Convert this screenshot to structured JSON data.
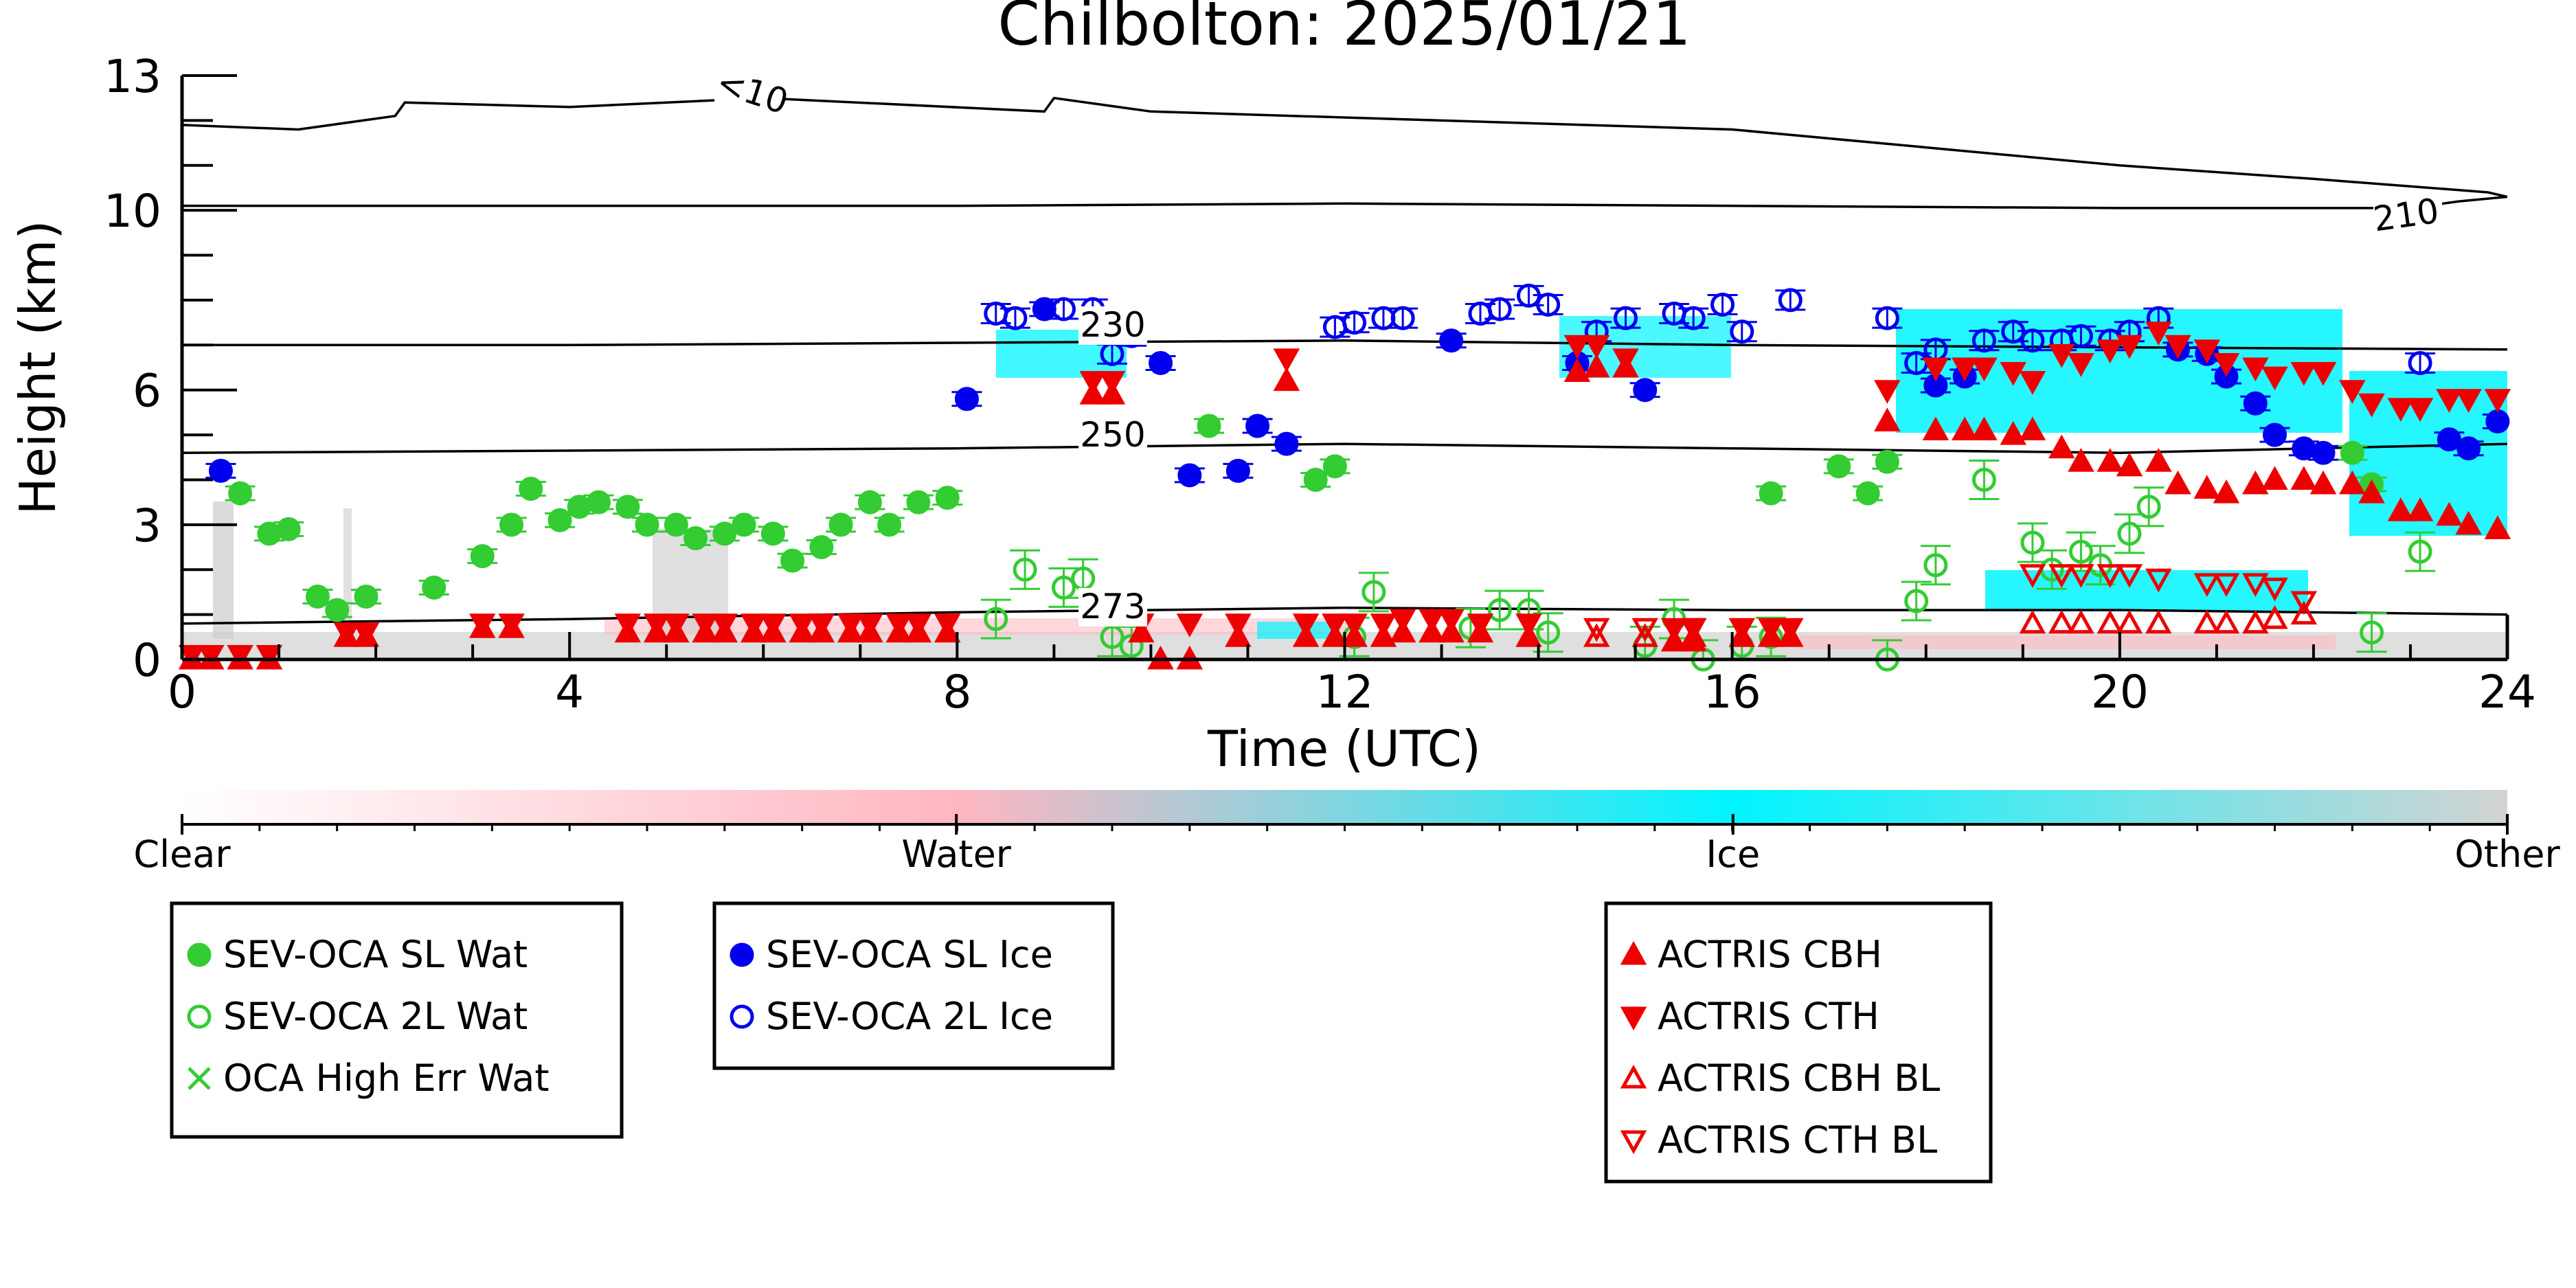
{
  "chart_data": {
    "type": "scatter",
    "title": "Chilbolton: 2025/01/21",
    "xlabel": "Time (UTC)",
    "ylabel": "Height (km)",
    "xlim": [
      0,
      24
    ],
    "ylim": [
      0,
      13
    ],
    "xticks": [
      0,
      4,
      8,
      12,
      16,
      20,
      24
    ],
    "yticks": [
      0,
      3,
      6,
      10,
      13
    ],
    "grid": false,
    "colorbar": {
      "labels": [
        {
          "value": 0,
          "text": "Clear"
        },
        {
          "value": 0.333,
          "text": "Water"
        },
        {
          "value": 0.667,
          "text": "Ice"
        },
        {
          "value": 1,
          "text": "Other"
        }
      ],
      "colors": [
        "#ffffff",
        "#ffb6c1",
        "#00f5ff",
        "#d3d3d3"
      ]
    },
    "contours": [
      {
        "label": "<10",
        "level_km": 12.3,
        "label_at": [
          14.5,
          12.6
        ],
        "points": [
          [
            0,
            11.9
          ],
          [
            1.2,
            11.8
          ],
          [
            2.2,
            12.1
          ],
          [
            2.3,
            12.4
          ],
          [
            4,
            12.3
          ],
          [
            6,
            12.5
          ],
          [
            8.9,
            12.2
          ],
          [
            9,
            12.5
          ],
          [
            10,
            12.2
          ],
          [
            13,
            12.0
          ],
          [
            16,
            11.8
          ],
          [
            18,
            11.4
          ],
          [
            20,
            11.0
          ],
          [
            22,
            10.7
          ],
          [
            23.8,
            10.4
          ],
          [
            24,
            10.3
          ]
        ]
      },
      {
        "label": "210",
        "level_km": 10.1,
        "label_at": [
          56,
          10.0
        ],
        "points": [
          [
            0,
            10.1
          ],
          [
            4,
            10.1
          ],
          [
            8,
            10.1
          ],
          [
            12,
            10.15
          ],
          [
            16,
            10.1
          ],
          [
            20,
            10.05
          ],
          [
            23,
            10.05
          ],
          [
            23.5,
            10.2
          ],
          [
            24,
            10.3
          ]
        ]
      },
      {
        "label": "230",
        "level_km": 7.0,
        "label_at": [
          9.5,
          7.0
        ],
        "points": [
          [
            0,
            7.0
          ],
          [
            4,
            7.0
          ],
          [
            8,
            7.05
          ],
          [
            12,
            7.1
          ],
          [
            14,
            7.05
          ],
          [
            16,
            7.0
          ],
          [
            20,
            6.95
          ],
          [
            24,
            6.9
          ]
        ]
      },
      {
        "label": "250",
        "level_km": 4.6,
        "label_at": [
          9.5,
          4.7
        ],
        "points": [
          [
            0,
            4.6
          ],
          [
            4,
            4.65
          ],
          [
            8,
            4.7
          ],
          [
            12,
            4.8
          ],
          [
            16,
            4.7
          ],
          [
            20,
            4.6
          ],
          [
            24,
            4.8
          ]
        ]
      },
      {
        "label": "273",
        "level_km": 1.1,
        "label_at": [
          9.5,
          1.1
        ],
        "points": [
          [
            0,
            0.8
          ],
          [
            4,
            0.9
          ],
          [
            8,
            1.05
          ],
          [
            12,
            1.15
          ],
          [
            16,
            1.1
          ],
          [
            20,
            1.1
          ],
          [
            24,
            1.0
          ]
        ]
      }
    ],
    "series": [
      {
        "name": "SEV-OCA SL Wat",
        "marker": "circle",
        "fill": true,
        "color": "#33cc33",
        "x": [
          0.6,
          0.9,
          1.1,
          1.4,
          1.6,
          1.9,
          2.6,
          3.1,
          3.4,
          3.6,
          3.9,
          4.1,
          4.3,
          4.6,
          4.8,
          5.1,
          5.3,
          5.6,
          5.8,
          6.1,
          6.3,
          6.6,
          6.8,
          7.1,
          7.3,
          7.6,
          7.9,
          10.6,
          11.7,
          11.9,
          16.4,
          17.1,
          17.4,
          17.6,
          22.4,
          22.6
        ],
        "y": [
          3.7,
          2.8,
          2.9,
          1.4,
          1.1,
          1.4,
          1.6,
          2.3,
          3.0,
          3.8,
          3.1,
          3.4,
          3.5,
          3.4,
          3.0,
          3.0,
          2.7,
          2.8,
          3.0,
          2.8,
          2.2,
          2.5,
          3.0,
          3.5,
          3.0,
          3.5,
          3.6,
          5.2,
          4.0,
          4.3,
          3.7,
          4.3,
          3.7,
          4.4,
          4.6,
          3.9
        ]
      },
      {
        "name": "SEV-OCA 2L Wat",
        "marker": "circle",
        "fill": false,
        "color": "#33cc33",
        "x": [
          8.4,
          8.7,
          9.1,
          9.3,
          9.6,
          9.8,
          12.1,
          12.3,
          13.3,
          13.6,
          13.9,
          14.1,
          15.1,
          15.4,
          15.7,
          16.1,
          16.4,
          17.6,
          17.9,
          18.1,
          18.6,
          19.1,
          19.3,
          19.6,
          19.8,
          20.1,
          20.3,
          22.6,
          23.1
        ],
        "y": [
          0.9,
          2.0,
          1.6,
          1.8,
          0.5,
          0.3,
          0.5,
          1.5,
          0.7,
          1.1,
          1.1,
          0.6,
          0.3,
          0.9,
          0.0,
          0.3,
          0.5,
          0.0,
          1.3,
          2.1,
          4.0,
          2.6,
          2.0,
          2.4,
          2.1,
          2.8,
          3.4,
          0.6,
          2.4
        ]
      },
      {
        "name": "OCA High Err Wat",
        "marker": "x",
        "fill": false,
        "color": "#33cc33",
        "x": [],
        "y": []
      },
      {
        "name": "SEV-OCA SL Ice",
        "marker": "circle",
        "fill": true,
        "color": "#0000ee",
        "x": [
          0.4,
          8.1,
          8.9,
          10.1,
          10.4,
          10.9,
          11.1,
          11.4,
          13.1,
          14.4,
          15.1,
          18.1,
          18.4,
          20.6,
          20.9,
          21.1,
          21.4,
          21.6,
          21.9,
          22.1,
          23.4,
          23.6,
          23.9
        ],
        "y": [
          4.2,
          5.8,
          7.8,
          6.6,
          4.1,
          4.2,
          5.2,
          4.8,
          7.1,
          6.6,
          6.0,
          6.1,
          6.3,
          6.9,
          6.8,
          6.3,
          5.7,
          5.0,
          4.7,
          4.6,
          4.9,
          4.7,
          5.3
        ]
      },
      {
        "name": "SEV-OCA 2L Ice",
        "marker": "circle",
        "fill": false,
        "color": "#0000ee",
        "x": [
          8.4,
          8.6,
          9.1,
          9.4,
          9.6,
          9.8,
          11.9,
          12.1,
          12.4,
          12.6,
          13.4,
          13.6,
          13.9,
          14.1,
          14.6,
          14.9,
          15.4,
          15.6,
          15.9,
          16.1,
          16.6,
          17.6,
          17.9,
          18.1,
          18.6,
          18.9,
          19.1,
          19.4,
          19.6,
          19.9,
          20.1,
          20.4,
          23.1
        ],
        "y": [
          7.7,
          7.6,
          7.8,
          7.8,
          6.8,
          7.2,
          7.4,
          7.5,
          7.6,
          7.6,
          7.7,
          7.8,
          8.1,
          7.9,
          7.3,
          7.6,
          7.7,
          7.6,
          7.9,
          7.3,
          8.0,
          7.6,
          6.6,
          6.9,
          7.1,
          7.3,
          7.1,
          7.1,
          7.2,
          7.1,
          7.3,
          7.6,
          6.6
        ]
      },
      {
        "name": "ACTRIS CBH",
        "marker": "triangle-up",
        "fill": true,
        "color": "#ee0000",
        "x": [
          0.1,
          0.3,
          0.6,
          0.9,
          1.7,
          1.9,
          3.1,
          3.4,
          4.6,
          4.9,
          5.1,
          5.4,
          5.6,
          5.9,
          6.1,
          6.4,
          6.6,
          6.9,
          7.1,
          7.4,
          7.6,
          7.9,
          9.4,
          9.6,
          9.9,
          10.1,
          10.4,
          10.9,
          11.4,
          11.6,
          11.9,
          12.1,
          12.4,
          12.6,
          12.9,
          13.1,
          13.4,
          13.9,
          14.4,
          14.6,
          14.9,
          15.4,
          15.6,
          16.1,
          16.4,
          16.6,
          17.6,
          18.1,
          18.4,
          18.6,
          18.9,
          19.1,
          19.4,
          19.6,
          19.9,
          20.1,
          20.4,
          20.6,
          20.9,
          21.1,
          21.4,
          21.6,
          21.9,
          22.1,
          22.4,
          22.6,
          22.9,
          23.1,
          23.4,
          23.6,
          23.9
        ],
        "y": [
          0.0,
          0.0,
          0.0,
          0.0,
          0.5,
          0.5,
          0.7,
          0.7,
          0.6,
          0.6,
          0.6,
          0.6,
          0.6,
          0.6,
          0.6,
          0.6,
          0.6,
          0.6,
          0.6,
          0.6,
          0.6,
          0.6,
          5.9,
          5.9,
          0.6,
          0.0,
          0.0,
          0.5,
          6.2,
          0.5,
          0.5,
          0.5,
          0.5,
          0.6,
          0.6,
          0.6,
          0.6,
          0.5,
          6.4,
          6.5,
          6.5,
          0.4,
          0.4,
          0.5,
          0.5,
          0.5,
          5.3,
          5.1,
          5.1,
          5.1,
          5.0,
          5.1,
          4.7,
          4.4,
          4.4,
          4.3,
          4.4,
          3.9,
          3.8,
          3.7,
          3.9,
          4.0,
          4.0,
          3.9,
          3.9,
          3.7,
          3.3,
          3.3,
          3.2,
          3.0,
          2.9
        ]
      },
      {
        "name": "ACTRIS CTH",
        "marker": "triangle-down",
        "fill": true,
        "color": "#ee0000",
        "x": [
          0.1,
          0.3,
          0.6,
          0.9,
          1.7,
          1.9,
          3.1,
          3.4,
          4.6,
          4.9,
          5.1,
          5.4,
          5.6,
          5.9,
          6.1,
          6.4,
          6.6,
          6.9,
          7.1,
          7.4,
          7.6,
          7.9,
          9.4,
          9.6,
          9.9,
          10.4,
          10.9,
          11.4,
          11.6,
          11.9,
          12.1,
          12.4,
          12.6,
          12.9,
          13.1,
          13.4,
          13.9,
          14.4,
          14.6,
          14.9,
          15.4,
          15.6,
          16.1,
          16.4,
          16.6,
          17.6,
          18.1,
          18.4,
          18.6,
          18.9,
          19.1,
          19.4,
          19.6,
          19.9,
          20.1,
          20.4,
          20.6,
          20.9,
          21.1,
          21.4,
          21.6,
          21.9,
          22.1,
          22.4,
          22.6,
          22.9,
          23.1,
          23.4,
          23.6,
          23.9
        ],
        "y": [
          0.1,
          0.1,
          0.1,
          0.1,
          0.6,
          0.6,
          0.8,
          0.8,
          0.8,
          0.8,
          0.8,
          0.8,
          0.8,
          0.8,
          0.8,
          0.8,
          0.8,
          0.8,
          0.8,
          0.8,
          0.8,
          0.8,
          6.2,
          6.2,
          0.8,
          0.8,
          0.8,
          6.7,
          0.8,
          0.8,
          0.8,
          0.8,
          0.9,
          0.9,
          0.9,
          0.8,
          0.8,
          7.0,
          7.0,
          6.7,
          0.7,
          0.7,
          0.7,
          0.7,
          0.7,
          6.0,
          6.5,
          6.5,
          6.5,
          6.4,
          6.2,
          6.8,
          6.6,
          6.9,
          7.0,
          7.3,
          7.0,
          6.9,
          6.6,
          6.5,
          6.3,
          6.4,
          6.4,
          6.0,
          5.7,
          5.6,
          5.6,
          5.8,
          5.8,
          5.8
        ]
      },
      {
        "name": "ACTRIS CBH BL",
        "marker": "triangle-up",
        "fill": false,
        "color": "#ee0000",
        "x": [
          14.6,
          15.1,
          15.6,
          19.1,
          19.4,
          19.6,
          19.9,
          20.1,
          20.4,
          20.9,
          21.1,
          21.4,
          21.6,
          21.9
        ],
        "y": [
          0.5,
          0.5,
          0.5,
          0.8,
          0.8,
          0.8,
          0.8,
          0.8,
          0.8,
          0.8,
          0.8,
          0.8,
          0.9,
          1.0
        ]
      },
      {
        "name": "ACTRIS CTH BL",
        "marker": "triangle-down",
        "fill": false,
        "color": "#ee0000",
        "x": [
          14.6,
          15.1,
          15.6,
          19.1,
          19.4,
          19.6,
          19.9,
          20.1,
          20.4,
          20.9,
          21.1,
          21.4,
          21.6,
          21.9
        ],
        "y": [
          0.7,
          0.7,
          0.7,
          1.9,
          1.9,
          1.9,
          1.9,
          1.9,
          1.8,
          1.7,
          1.7,
          1.7,
          1.6,
          1.3
        ]
      }
    ],
    "legends": [
      {
        "entries": [
          "SEV-OCA SL Wat",
          "SEV-OCA 2L Wat",
          "OCA High Err Wat"
        ]
      },
      {
        "entries": [
          "SEV-OCA SL Ice",
          "SEV-OCA 2L Ice"
        ]
      },
      {
        "entries": [
          "ACTRIS CBH",
          "ACTRIS CTH",
          "ACTRIS CBH BL",
          "ACTRIS CTH BL"
        ]
      }
    ]
  }
}
